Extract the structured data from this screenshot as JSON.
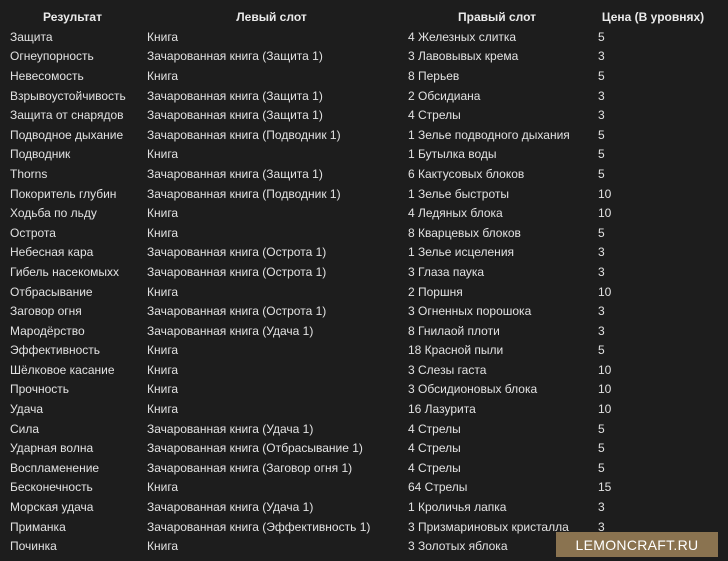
{
  "headers": [
    "Результат",
    "Левый слот",
    "Правый слот",
    "Цена (В уровнях)"
  ],
  "rows": [
    [
      "Защита",
      "Книга",
      "4 Железных слитка",
      "5"
    ],
    [
      "Огнеупорность",
      "Зачарованная книга (Защита 1)",
      "3 Лавовывых крема",
      "3"
    ],
    [
      "Невесомость",
      "Книга",
      "8 Перьев",
      "5"
    ],
    [
      "Взрывоустойчивость",
      "Зачарованная книга (Защита 1)",
      "2 Обсидиана",
      "3"
    ],
    [
      "Защита от снарядов",
      "Зачарованная книга (Защита 1)",
      "4 Стрелы",
      "3"
    ],
    [
      "Подводное дыхание",
      "Зачарованная книга (Подводник 1)",
      "1 Зелье подводного дыхания",
      "5"
    ],
    [
      "Подводник",
      "Книга",
      "1 Бутылка воды",
      "5"
    ],
    [
      "Thorns",
      "Зачарованная книга (Защита 1)",
      "6 Кактусовых блоков",
      "5"
    ],
    [
      "Покоритель глубин",
      "Зачарованная книга (Подводник 1)",
      "1 Зелье быстроты",
      "10"
    ],
    [
      "Ходьба по льду",
      "Книга",
      "4 Ледяных блока",
      "10"
    ],
    [
      "Острота",
      "Книга",
      "8 Кварцевых блоков",
      "5"
    ],
    [
      "Небесная кара",
      "Зачарованная книга (Острота 1)",
      "1 Зелье исцеления",
      "3"
    ],
    [
      "Гибель насекомыхх",
      "Зачарованная книга (Острота 1)",
      "3 Глаза паука",
      "3"
    ],
    [
      "Отбрасывание",
      "Книга",
      "2 Поршня",
      "10"
    ],
    [
      "Заговор огня",
      "Зачарованная книга (Острота 1)",
      "3 Огненных порошока",
      "3"
    ],
    [
      "Мародёрство",
      "Зачарованная книга (Удача 1)",
      "8 Гнилаой плоти",
      "3"
    ],
    [
      "Эффективность",
      "Книга",
      "18 Красной пыли",
      "5"
    ],
    [
      "Шёлковое касание",
      "Книга",
      "3 Слезы гаста",
      "10"
    ],
    [
      "Прочность",
      "Книга",
      "3 Обсидионовых блока",
      "10"
    ],
    [
      "Удача",
      "Книга",
      "16 Лазурита",
      "10"
    ],
    [
      "Сила",
      "Зачарованная книга (Удача 1)",
      "4 Стрелы",
      "5"
    ],
    [
      "Ударная волна",
      "Зачарованная книга (Отбрасывание 1)",
      "4 Стрелы",
      "5"
    ],
    [
      "Воспламенение",
      "Зачарованная книга (Заговор огня 1)",
      "4 Стрелы",
      "5"
    ],
    [
      "Бесконечность",
      "Книга",
      "64 Стрелы",
      "15"
    ],
    [
      "Морская удача",
      "Зачарованная книга (Удача 1)",
      "1 Кроличья лапка",
      "3"
    ],
    [
      "Приманка",
      "Зачарованная книга (Эффективность 1)",
      "3 Призмариновых кристалла",
      "3"
    ],
    [
      "Починка",
      "Книга",
      "3 Золотых яблока",
      ""
    ]
  ],
  "watermark": "LEMONCRAFT.RU",
  "colors": {
    "background": "#1d1d1d",
    "text": "#e2e2e2",
    "watermark_bg": "#8a7350"
  }
}
